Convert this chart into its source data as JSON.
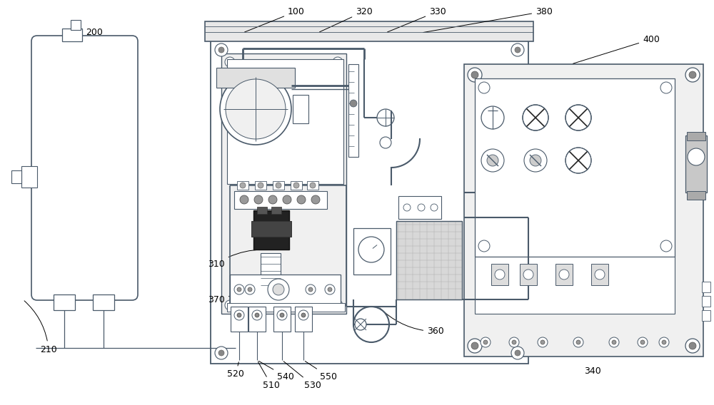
{
  "bg_color": "#ffffff",
  "lc": "#4a5a6a",
  "lc_dark": "#2a3a4a",
  "lc_black": "#000000",
  "fc_panel": "#f5f5f5",
  "fc_white": "#ffffff",
  "fc_gray": "#e0e0e0",
  "fc_dgray": "#c0c0c0",
  "label_fs": 9,
  "figsize": [
    10.0,
    5.68
  ],
  "dpi": 100
}
